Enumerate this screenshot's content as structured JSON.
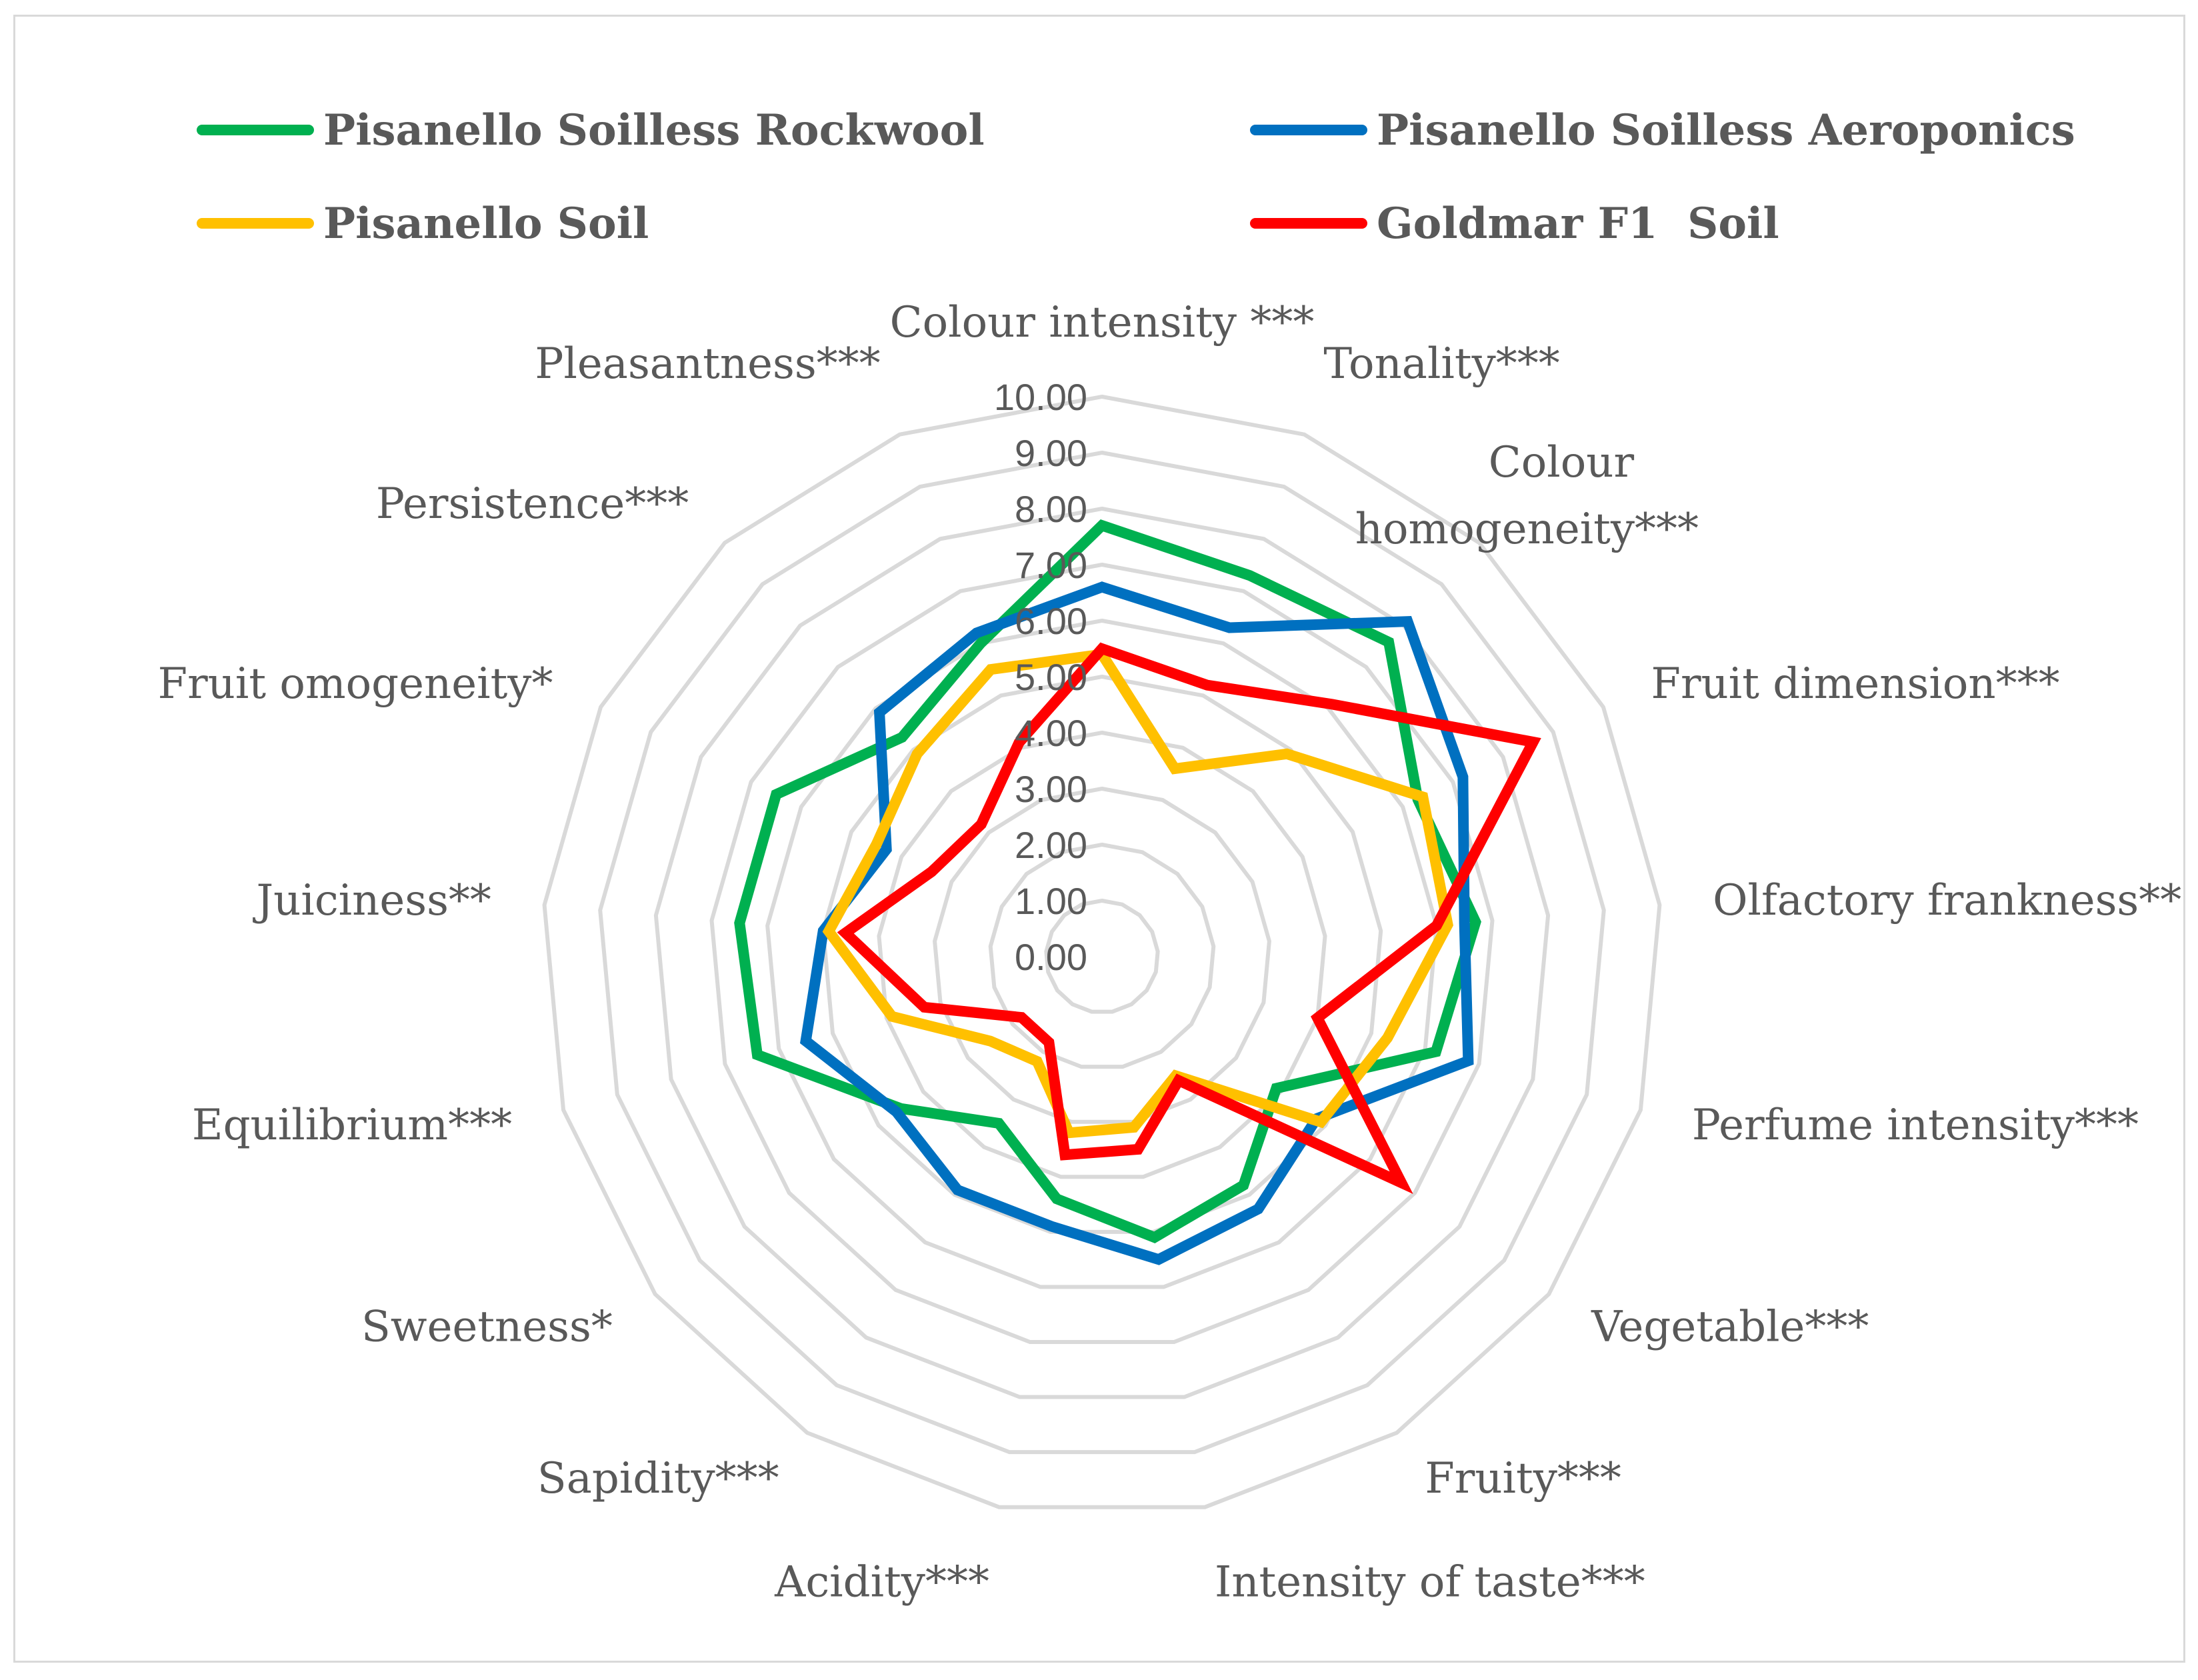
{
  "chart_data": {
    "type": "radar",
    "title": "",
    "rlim": [
      0,
      10
    ],
    "ticks": [
      "0.00",
      "1.00",
      "2.00",
      "3.00",
      "4.00",
      "5.00",
      "6.00",
      "7.00",
      "8.00",
      "9.00",
      "10.00"
    ],
    "grid": true,
    "legend_position": "top",
    "categories": [
      "Colour intensity ***",
      "Tonality***",
      "Colour homogeneity***",
      "Fruit dimension***",
      "Olfactory frankness**",
      "Perfume intensity***",
      "Vegetable***",
      "Fruity***",
      "Intensity of taste***",
      "Acidity***",
      "Sapidity***",
      "Sweetness*",
      "Equilibrium***",
      "Juiciness**",
      "Fruit omogeneity*",
      "Persistence***",
      "Pleasantness***"
    ],
    "series": [
      {
        "name": "Pisanello Soilless Rockwool",
        "color": "#00b050",
        "values": [
          7.7,
          7.3,
          7.6,
          6.3,
          6.7,
          6.2,
          3.9,
          4.8,
          5.1,
          4.4,
          3.5,
          4.5,
          6.4,
          6.5,
          6.5,
          5.3,
          6.0
        ]
      },
      {
        "name": "Pisanello Soilless Aeroponics",
        "color": "#0070c0",
        "values": [
          6.6,
          6.3,
          8.1,
          7.2,
          6.5,
          6.8,
          4.8,
          5.3,
          5.5,
          4.9,
          4.9,
          4.6,
          5.5,
          5.0,
          4.3,
          5.9,
          6.2
        ]
      },
      {
        "name": "Pisanello Soil",
        "color": "#ffc000",
        "values": [
          5.4,
          3.6,
          4.9,
          6.4,
          6.2,
          5.3,
          4.9,
          2.5,
          3.1,
          3.2,
          2.2,
          2.5,
          3.9,
          4.9,
          4.5,
          4.9,
          5.5
        ]
      },
      {
        "name": "Goldmar F1  Soil",
        "color": "#ff0000",
        "values": [
          5.5,
          5.2,
          6.1,
          8.6,
          6.0,
          4.0,
          6.7,
          2.6,
          3.5,
          3.6,
          1.8,
          1.8,
          3.3,
          4.6,
          3.4,
          3.2,
          4.1
        ]
      }
    ]
  }
}
